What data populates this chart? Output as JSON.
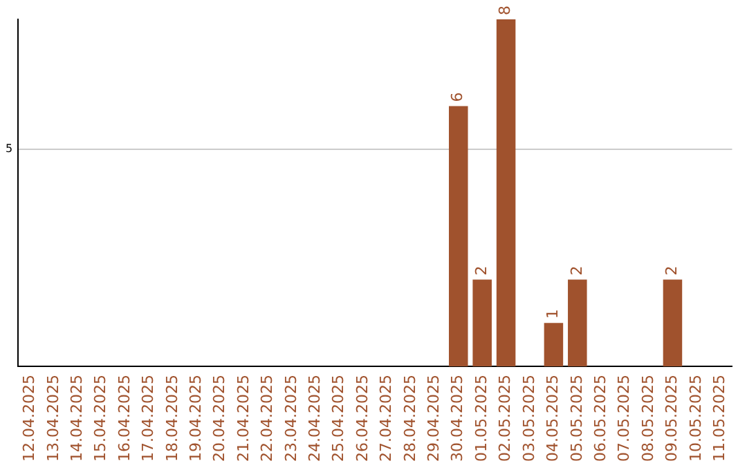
{
  "chart_data": {
    "type": "bar",
    "categories": [
      "12.04.2025",
      "13.04.2025",
      "14.04.2025",
      "15.04.2025",
      "16.04.2025",
      "17.04.2025",
      "18.04.2025",
      "19.04.2025",
      "20.04.2025",
      "21.04.2025",
      "22.04.2025",
      "23.04.2025",
      "24.04.2025",
      "25.04.2025",
      "26.04.2025",
      "27.04.2025",
      "28.04.2025",
      "29.04.2025",
      "30.04.2025",
      "01.05.2025",
      "02.05.2025",
      "03.05.2025",
      "04.05.2025",
      "05.05.2025",
      "06.05.2025",
      "07.05.2025",
      "08.05.2025",
      "09.05.2025",
      "10.05.2025",
      "11.05.2025"
    ],
    "values": [
      null,
      null,
      null,
      null,
      null,
      null,
      null,
      null,
      null,
      null,
      null,
      null,
      null,
      null,
      null,
      null,
      null,
      null,
      6,
      2,
      8,
      null,
      1,
      2,
      null,
      null,
      null,
      2,
      null,
      null
    ],
    "color": "#a0522d",
    "ylim": [
      0,
      8
    ],
    "yticks": [
      5
    ],
    "grid": "y",
    "legend": false,
    "data_labels": true
  }
}
